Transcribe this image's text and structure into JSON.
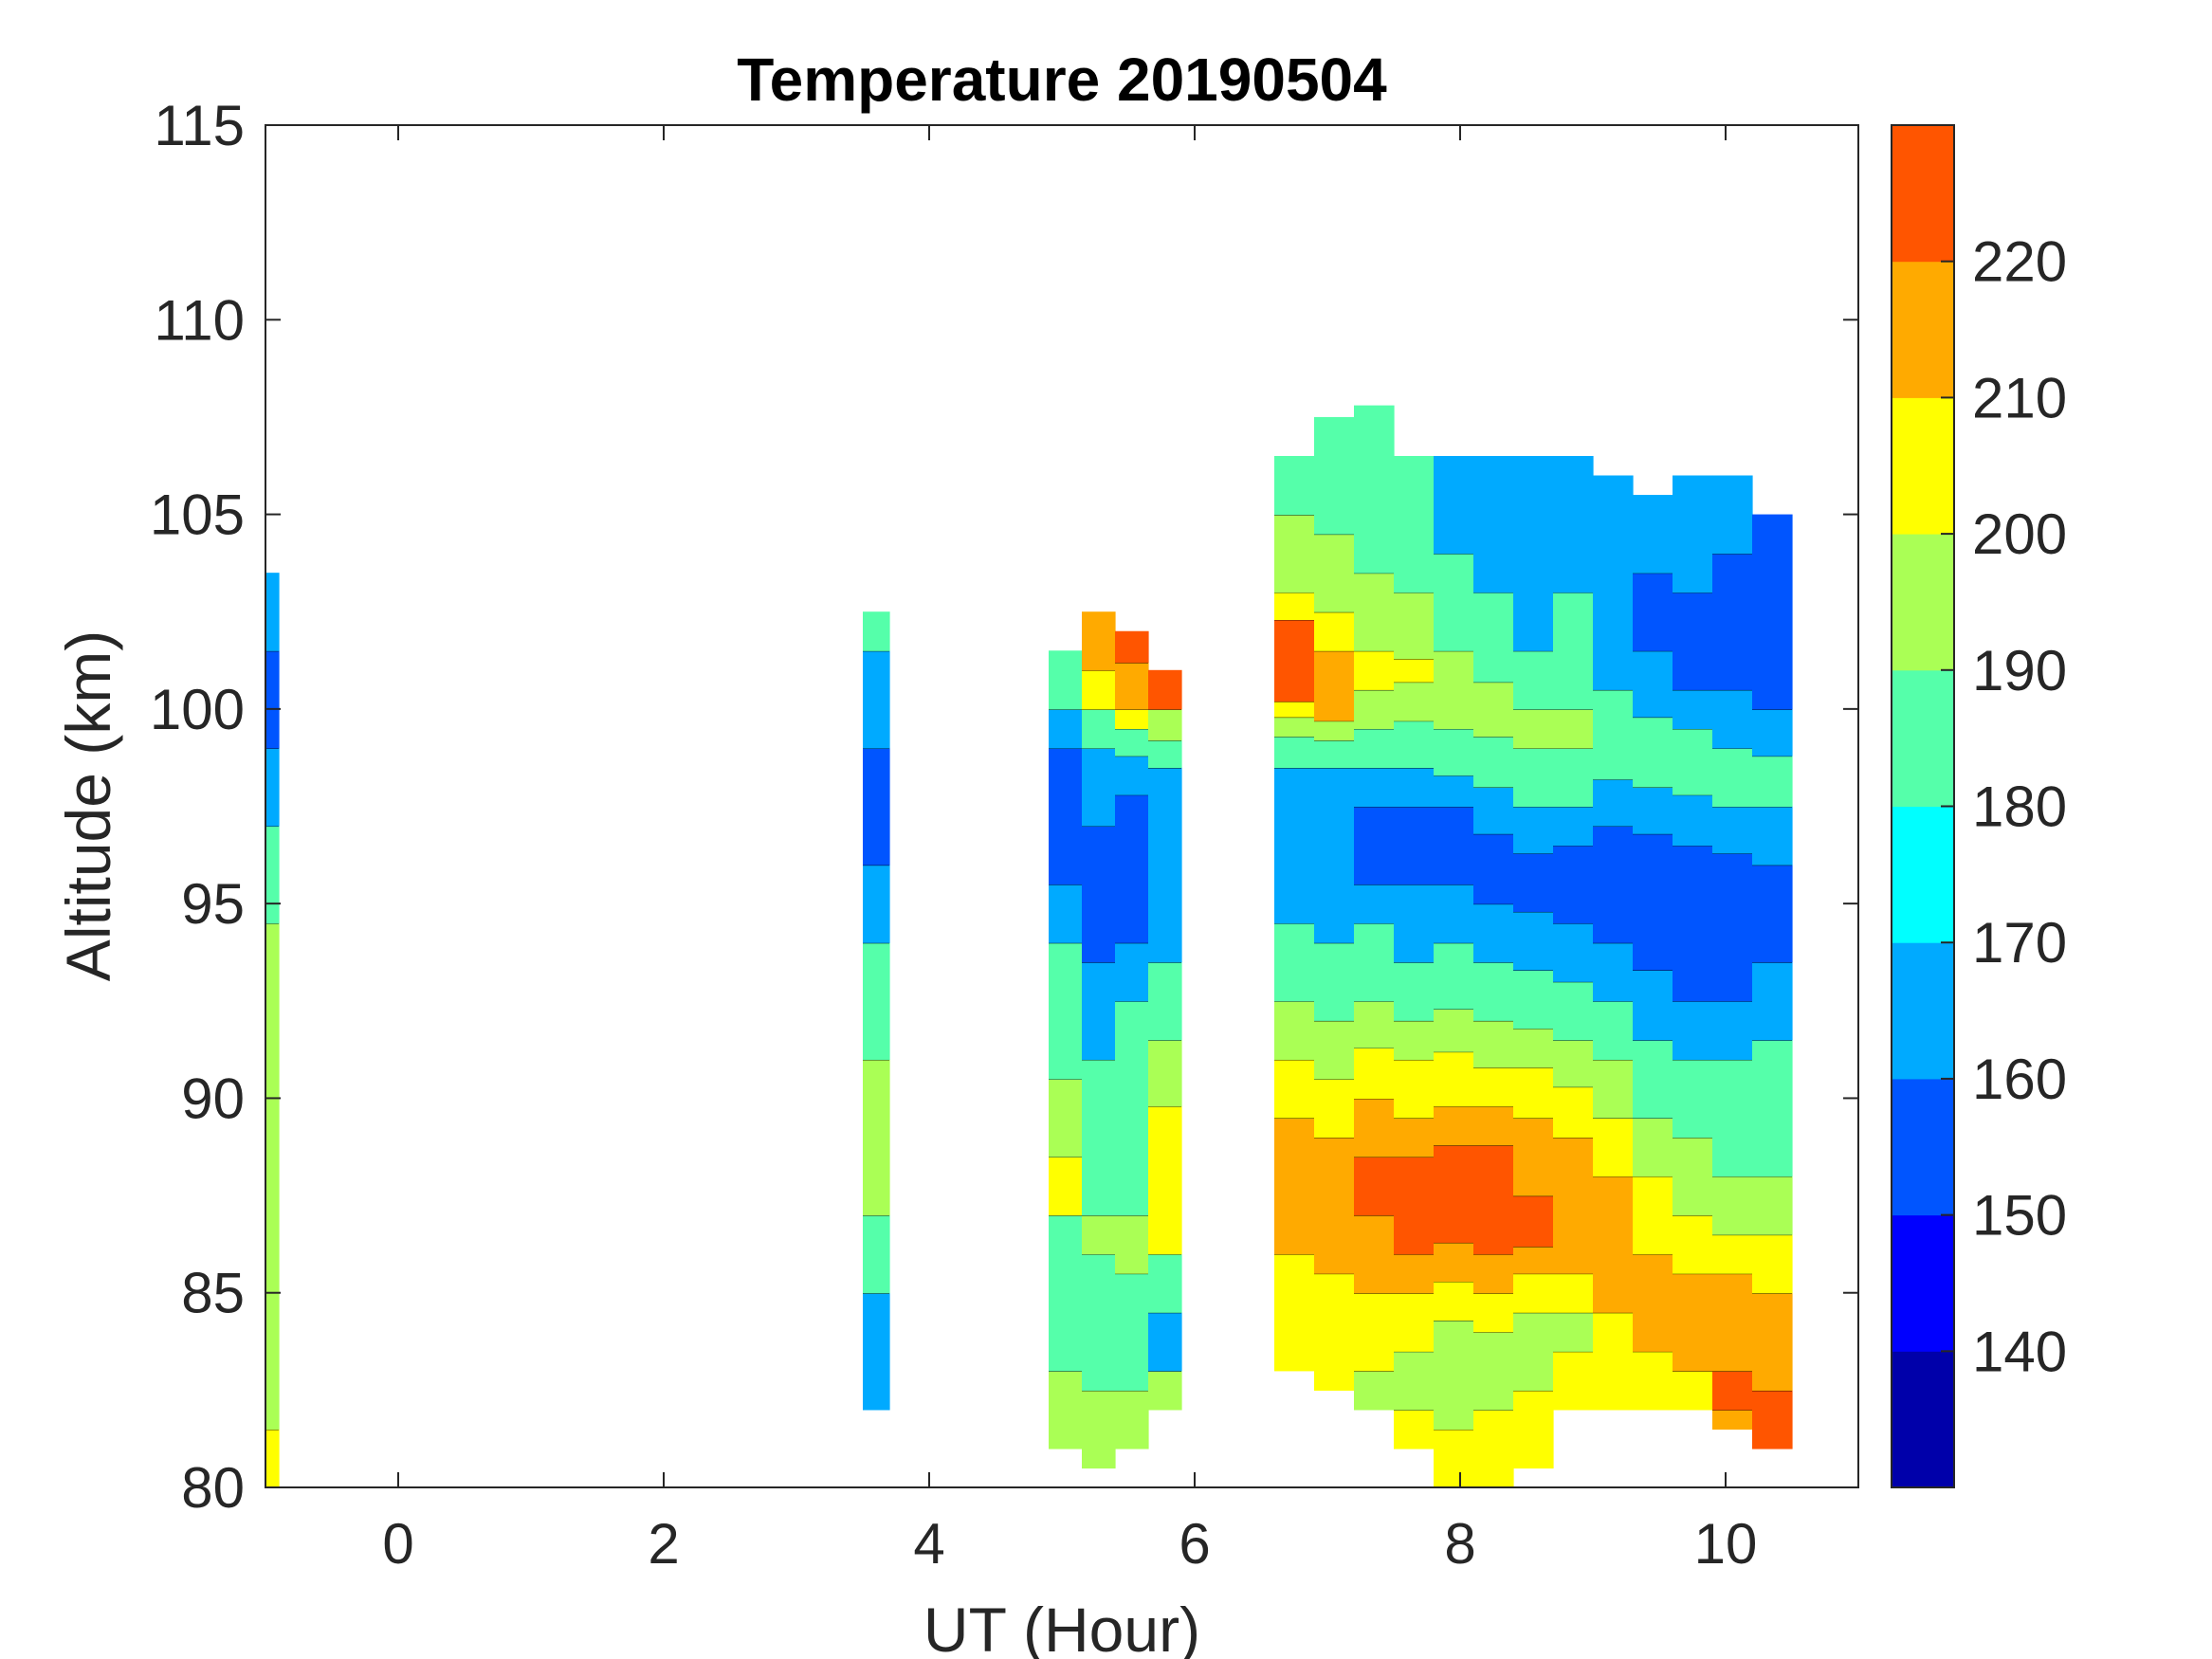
{
  "chart_data": {
    "type": "heatmap",
    "subtype": "filled-contour",
    "title": "Temperature 20190504",
    "xlabel": "UT (Hour)",
    "ylabel": "Altitude (km)",
    "xlim": [
      -1,
      11
    ],
    "ylim": [
      80,
      115
    ],
    "xticks": [
      0,
      2,
      4,
      6,
      8,
      10
    ],
    "yticks": [
      80,
      85,
      90,
      95,
      100,
      105,
      110,
      115
    ],
    "grid": false,
    "colorbar": {
      "range": [
        130,
        230
      ],
      "ticks": [
        140,
        150,
        160,
        170,
        180,
        190,
        200,
        210,
        220
      ],
      "levels": [
        130,
        140,
        150,
        160,
        170,
        180,
        190,
        200,
        210,
        220,
        230
      ],
      "colors": [
        "#0000AA",
        "#0000FF",
        "#0055FF",
        "#00AAFF",
        "#00FFFF",
        "#55FFAA",
        "#AAFF55",
        "#FFFF00",
        "#FFAA00",
        "#FF5500"
      ],
      "placement": "right"
    },
    "columns": [
      {
        "t": -1.0,
        "w": 0.1,
        "alt0": 80,
        "bands": [
          [
            81.5,
            205
          ],
          [
            94.5,
            195
          ],
          [
            97,
            185
          ],
          [
            99,
            165
          ],
          [
            101.5,
            155
          ],
          [
            103.5,
            165
          ]
        ]
      },
      {
        "t": 3.5,
        "w": 0.2,
        "alt0": 82,
        "bands": [
          [
            85,
            165
          ],
          [
            87,
            185
          ],
          [
            91,
            195
          ],
          [
            94,
            185
          ],
          [
            96,
            165
          ],
          [
            99,
            155
          ],
          [
            101.5,
            165
          ],
          [
            102.5,
            185
          ]
        ]
      },
      {
        "t": 4.9,
        "w": 0.25,
        "alt0": 81,
        "bands": [
          [
            83,
            195
          ],
          [
            87,
            185
          ],
          [
            88.5,
            205
          ],
          [
            90.5,
            195
          ],
          [
            94,
            185
          ],
          [
            95.5,
            165
          ],
          [
            99,
            155
          ],
          [
            100,
            165
          ],
          [
            101.5,
            185
          ]
        ]
      },
      {
        "t": 5.15,
        "w": 0.25,
        "alt0": 80.5,
        "bands": [
          [
            82.5,
            195
          ],
          [
            86,
            185
          ],
          [
            87,
            195
          ],
          [
            91,
            185
          ],
          [
            93.5,
            165
          ],
          [
            97,
            155
          ],
          [
            99,
            165
          ],
          [
            100,
            185
          ],
          [
            101,
            205
          ],
          [
            102.5,
            215
          ]
        ]
      },
      {
        "t": 5.4,
        "w": 0.25,
        "alt0": 81,
        "bands": [
          [
            82.5,
            195
          ],
          [
            85.5,
            185
          ],
          [
            87,
            195
          ],
          [
            92.5,
            185
          ],
          [
            94,
            165
          ],
          [
            97.8,
            155
          ],
          [
            98.8,
            165
          ],
          [
            99.5,
            185
          ],
          [
            100,
            205
          ],
          [
            101.2,
            215
          ],
          [
            102,
            225
          ]
        ]
      },
      {
        "t": 5.65,
        "w": 0.25,
        "alt0": 82,
        "bands": [
          [
            83,
            195
          ],
          [
            84.5,
            165
          ],
          [
            86,
            185
          ],
          [
            89.8,
            205
          ],
          [
            91.5,
            195
          ],
          [
            93.5,
            185
          ],
          [
            98.5,
            165
          ],
          [
            99.2,
            185
          ],
          [
            100,
            195
          ],
          [
            101,
            225
          ]
        ]
      },
      {
        "t": 6.6,
        "w": 0.3,
        "alt0": 83,
        "bands": [
          [
            86,
            205
          ],
          [
            89.5,
            215
          ],
          [
            91,
            205
          ],
          [
            92.5,
            195
          ],
          [
            94.5,
            185
          ],
          [
            98.5,
            165
          ],
          [
            99.3,
            185
          ],
          [
            99.8,
            195
          ],
          [
            100.2,
            205
          ],
          [
            102.3,
            225
          ],
          [
            103,
            205
          ],
          [
            105,
            195
          ],
          [
            106.5,
            185
          ]
        ]
      },
      {
        "t": 6.9,
        "w": 0.3,
        "alt0": 82.5,
        "bands": [
          [
            85.5,
            205
          ],
          [
            89,
            215
          ],
          [
            90.5,
            205
          ],
          [
            92,
            195
          ],
          [
            94,
            185
          ],
          [
            98.5,
            165
          ],
          [
            99.2,
            185
          ],
          [
            99.7,
            195
          ],
          [
            101.5,
            215
          ],
          [
            102.5,
            205
          ],
          [
            104.5,
            195
          ],
          [
            107.5,
            185
          ]
        ]
      },
      {
        "t": 7.2,
        "w": 0.3,
        "alt0": 82,
        "bands": [
          [
            83,
            195
          ],
          [
            85,
            205
          ],
          [
            87,
            215
          ],
          [
            88.5,
            225
          ],
          [
            90,
            215
          ],
          [
            91.3,
            205
          ],
          [
            92.5,
            195
          ],
          [
            94.5,
            185
          ],
          [
            95.5,
            165
          ],
          [
            97.5,
            155
          ],
          [
            98.5,
            165
          ],
          [
            99.5,
            185
          ],
          [
            100.5,
            195
          ],
          [
            101.5,
            205
          ],
          [
            103.5,
            195
          ],
          [
            107.8,
            185
          ]
        ]
      },
      {
        "t": 7.5,
        "w": 0.3,
        "alt0": 81,
        "bands": [
          [
            82,
            205
          ],
          [
            83.5,
            195
          ],
          [
            85,
            205
          ],
          [
            86,
            215
          ],
          [
            88.5,
            225
          ],
          [
            89.5,
            215
          ],
          [
            91,
            205
          ],
          [
            92,
            195
          ],
          [
            93.5,
            185
          ],
          [
            95.5,
            165
          ],
          [
            97.5,
            155
          ],
          [
            98.5,
            165
          ],
          [
            99.7,
            185
          ],
          [
            100.7,
            195
          ],
          [
            101.3,
            205
          ],
          [
            103,
            195
          ],
          [
            106.5,
            185
          ]
        ]
      },
      {
        "t": 7.8,
        "w": 0.3,
        "alt0": 80,
        "bands": [
          [
            81.5,
            205
          ],
          [
            84.3,
            195
          ],
          [
            85.3,
            205
          ],
          [
            86.3,
            215
          ],
          [
            88.8,
            225
          ],
          [
            89.8,
            215
          ],
          [
            91.2,
            205
          ],
          [
            92.3,
            195
          ],
          [
            94,
            185
          ],
          [
            95.5,
            165
          ],
          [
            97.5,
            155
          ],
          [
            98.3,
            165
          ],
          [
            99.5,
            185
          ],
          [
            101.5,
            195
          ],
          [
            104,
            185
          ],
          [
            106.5,
            165
          ]
        ]
      },
      {
        "t": 8.1,
        "w": 0.3,
        "alt0": 80,
        "bands": [
          [
            82,
            205
          ],
          [
            84,
            195
          ],
          [
            85,
            205
          ],
          [
            86,
            215
          ],
          [
            88.8,
            225
          ],
          [
            89.8,
            215
          ],
          [
            90.8,
            205
          ],
          [
            92,
            195
          ],
          [
            93.5,
            185
          ],
          [
            95,
            165
          ],
          [
            96.8,
            155
          ],
          [
            98,
            165
          ],
          [
            99.3,
            185
          ],
          [
            100.7,
            195
          ],
          [
            103,
            185
          ],
          [
            106.5,
            165
          ]
        ]
      },
      {
        "t": 8.4,
        "w": 0.3,
        "alt0": 80.5,
        "bands": [
          [
            82.5,
            205
          ],
          [
            84.5,
            195
          ],
          [
            85.5,
            205
          ],
          [
            86.2,
            215
          ],
          [
            87.5,
            225
          ],
          [
            89.5,
            215
          ],
          [
            90.8,
            205
          ],
          [
            91.8,
            195
          ],
          [
            93.3,
            185
          ],
          [
            94.8,
            165
          ],
          [
            96.3,
            155
          ],
          [
            97.5,
            165
          ],
          [
            99,
            185
          ],
          [
            100,
            195
          ],
          [
            101.5,
            185
          ],
          [
            106.5,
            165
          ]
        ]
      },
      {
        "t": 8.7,
        "w": 0.3,
        "alt0": 82,
        "bands": [
          [
            83.5,
            205
          ],
          [
            84.5,
            195
          ],
          [
            85.5,
            205
          ],
          [
            89,
            215
          ],
          [
            90.3,
            205
          ],
          [
            91.5,
            195
          ],
          [
            93,
            185
          ],
          [
            94.5,
            165
          ],
          [
            96.5,
            155
          ],
          [
            97.5,
            165
          ],
          [
            99,
            185
          ],
          [
            100,
            195
          ],
          [
            103,
            185
          ],
          [
            106.5,
            165
          ]
        ]
      },
      {
        "t": 9.0,
        "w": 0.3,
        "alt0": 82,
        "bands": [
          [
            84.5,
            205
          ],
          [
            88,
            215
          ],
          [
            89.5,
            205
          ],
          [
            91,
            195
          ],
          [
            92.5,
            185
          ],
          [
            94,
            165
          ],
          [
            97,
            155
          ],
          [
            98.2,
            165
          ],
          [
            100.5,
            185
          ],
          [
            106,
            165
          ]
        ]
      },
      {
        "t": 9.3,
        "w": 0.3,
        "alt0": 82,
        "bands": [
          [
            83.5,
            205
          ],
          [
            86,
            215
          ],
          [
            88,
            205
          ],
          [
            89.5,
            195
          ],
          [
            91.5,
            185
          ],
          [
            93.3,
            165
          ],
          [
            96.8,
            155
          ],
          [
            98,
            165
          ],
          [
            99.8,
            185
          ],
          [
            101.5,
            165
          ],
          [
            103.5,
            155
          ],
          [
            105.5,
            165
          ]
        ]
      },
      {
        "t": 9.6,
        "w": 0.3,
        "alt0": 82,
        "bands": [
          [
            83,
            205
          ],
          [
            85.5,
            215
          ],
          [
            87,
            205
          ],
          [
            89,
            195
          ],
          [
            91,
            185
          ],
          [
            92.5,
            165
          ],
          [
            96.5,
            155
          ],
          [
            97.8,
            165
          ],
          [
            99.5,
            185
          ],
          [
            100.5,
            165
          ],
          [
            103,
            155
          ],
          [
            106,
            165
          ]
        ]
      },
      {
        "t": 9.9,
        "w": 0.3,
        "alt0": 81.5,
        "bands": [
          [
            82,
            215
          ],
          [
            83,
            225
          ],
          [
            85.5,
            215
          ],
          [
            86.5,
            205
          ],
          [
            88,
            195
          ],
          [
            91,
            185
          ],
          [
            92.5,
            165
          ],
          [
            96.3,
            155
          ],
          [
            97.5,
            165
          ],
          [
            99,
            185
          ],
          [
            100.5,
            165
          ],
          [
            104,
            155
          ],
          [
            106,
            165
          ]
        ]
      },
      {
        "t": 10.2,
        "w": 0.3,
        "alt0": 81,
        "bands": [
          [
            82.5,
            225
          ],
          [
            85,
            215
          ],
          [
            86.5,
            205
          ],
          [
            88,
            195
          ],
          [
            91.5,
            185
          ],
          [
            93.5,
            165
          ],
          [
            96,
            155
          ],
          [
            97.5,
            165
          ],
          [
            98.8,
            185
          ],
          [
            100,
            165
          ],
          [
            105,
            155
          ]
        ]
      }
    ]
  }
}
